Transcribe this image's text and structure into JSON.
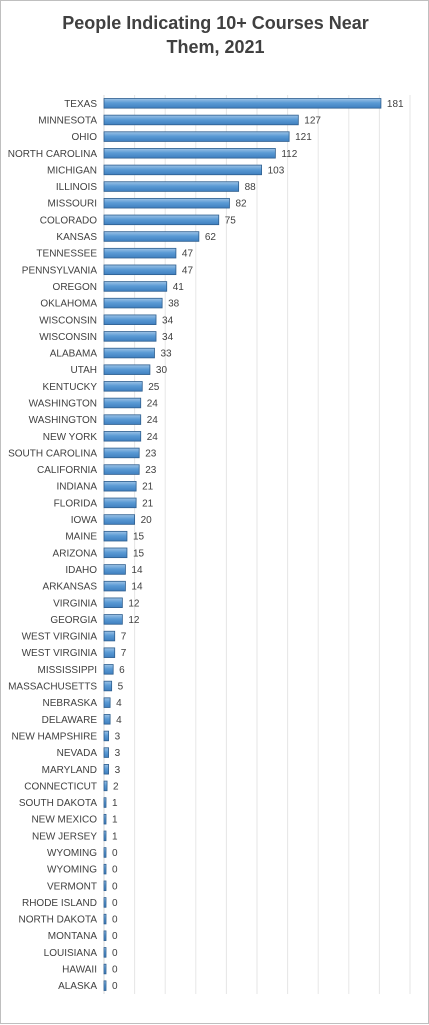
{
  "chart_data": {
    "type": "bar",
    "orientation": "horizontal",
    "title": "People Indicating 10+ Courses Near Them, 2021",
    "xlabel": "",
    "ylabel": "",
    "xlim": [
      0,
      200
    ],
    "grid": true,
    "legend": "none",
    "bar_color": "#5b9bd5",
    "bar_edge_color": "#2e5e8e",
    "categories": [
      "TEXAS",
      "MINNESOTA",
      "OHIO",
      "NORTH CAROLINA",
      "MICHIGAN",
      "ILLINOIS",
      "MISSOURI",
      "COLORADO",
      "KANSAS",
      "TENNESSEE",
      "PENNSYLVANIA",
      "OREGON",
      "OKLAHOMA",
      "WISCONSIN",
      "WISCONSIN",
      "ALABAMA",
      "UTAH",
      "KENTUCKY",
      "WASHINGTON",
      "WASHINGTON",
      "NEW YORK",
      "SOUTH CAROLINA",
      "CALIFORNIA",
      "INDIANA",
      "FLORIDA",
      "IOWA",
      "MAINE",
      "ARIZONA",
      "IDAHO",
      "ARKANSAS",
      "VIRGINIA",
      "GEORGIA",
      "WEST VIRGINIA",
      "WEST VIRGINIA",
      "MISSISSIPPI",
      "MASSACHUSETTS",
      "NEBRASKA",
      "DELAWARE",
      "NEW HAMPSHIRE",
      "NEVADA",
      "MARYLAND",
      "CONNECTICUT",
      "SOUTH DAKOTA",
      "NEW MEXICO",
      "NEW JERSEY",
      "WYOMING",
      "WYOMING",
      "VERMONT",
      "RHODE ISLAND",
      "NORTH DAKOTA",
      "MONTANA",
      "LOUISIANA",
      "HAWAII",
      "ALASKA"
    ],
    "values": [
      181,
      127,
      121,
      112,
      103,
      88,
      82,
      75,
      62,
      47,
      47,
      41,
      38,
      34,
      34,
      33,
      30,
      25,
      24,
      24,
      24,
      23,
      23,
      21,
      21,
      20,
      15,
      15,
      14,
      14,
      12,
      12,
      7,
      7,
      6,
      5,
      4,
      4,
      3,
      3,
      3,
      2,
      1,
      1,
      1,
      0,
      0,
      0,
      0,
      0,
      0,
      0,
      0,
      0
    ]
  }
}
